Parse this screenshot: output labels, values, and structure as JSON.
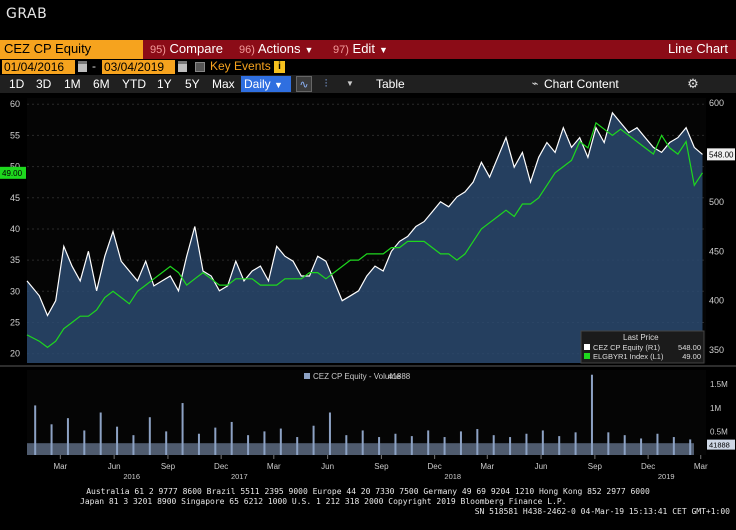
{
  "window": {
    "title": "GRAB"
  },
  "command_bar": {
    "ticker": "CEZ CP Equity",
    "menus": [
      {
        "num": "95)",
        "label": "Compare"
      },
      {
        "num": "96)",
        "label": "Actions"
      },
      {
        "num": "97)",
        "label": "Edit"
      }
    ],
    "view_label": "Line Chart"
  },
  "date_range": {
    "start": "01/04/2016",
    "end": "03/04/2019",
    "separator": "-",
    "key_events_label": "Key Events",
    "info_glyph": "i"
  },
  "toolbar": {
    "periods": [
      "1D",
      "3D",
      "1M",
      "6M",
      "YTD",
      "1Y",
      "5Y",
      "Max"
    ],
    "frequency": "Daily",
    "table_label": "Table",
    "chart_content_label": "Chart Content"
  },
  "colors": {
    "accent_orange": "#f6a31e",
    "command_red": "#8b0c17",
    "series_white": "#ffffff",
    "series_green": "#1ed81e",
    "volume_bar": "#8da2c4",
    "area_fill": "#2c4a70"
  },
  "chart_data": [
    {
      "type": "line",
      "legend": {
        "title": "Last Price",
        "placement": "bottom-right",
        "entries": [
          {
            "label": "CEZ CP Equity  (R1)",
            "value": "548.00",
            "color": "#ffffff"
          },
          {
            "label": "ELGBYR1 Index  (L1)",
            "value": "49.00",
            "color": "#1ed81e"
          }
        ]
      },
      "left_axis": {
        "ticks": [
          "20",
          "25",
          "30",
          "35",
          "40",
          "45",
          "50",
          "55",
          "60"
        ],
        "range": [
          18.5,
          61
        ],
        "last_label": "49.00"
      },
      "right_axis": {
        "ticks": [
          "350",
          "400",
          "450",
          "500",
          "550",
          "600"
        ],
        "range": [
          337,
          605
        ],
        "last_label": "548.00"
      },
      "series": [
        {
          "name": "CEZ CP Equity",
          "axis": "right",
          "dates": [
            "2016-01-04",
            "2016-01-25",
            "2016-02-08",
            "2016-02-22",
            "2016-03-07",
            "2016-03-21",
            "2016-04-04",
            "2016-04-18",
            "2016-05-02",
            "2016-05-16",
            "2016-05-30",
            "2016-06-13",
            "2016-06-27",
            "2016-07-11",
            "2016-07-25",
            "2016-08-08",
            "2016-08-22",
            "2016-09-05",
            "2016-09-19",
            "2016-10-03",
            "2016-10-17",
            "2016-10-31",
            "2016-11-14",
            "2016-11-28",
            "2016-12-12",
            "2016-12-26",
            "2017-01-09",
            "2017-01-23",
            "2017-02-06",
            "2017-02-20",
            "2017-03-06",
            "2017-03-20",
            "2017-04-03",
            "2017-04-17",
            "2017-05-01",
            "2017-05-15",
            "2017-05-29",
            "2017-06-12",
            "2017-06-26",
            "2017-07-10",
            "2017-07-24",
            "2017-08-07",
            "2017-08-21",
            "2017-09-04",
            "2017-09-18",
            "2017-10-02",
            "2017-10-16",
            "2017-10-30",
            "2017-11-13",
            "2017-11-27",
            "2017-12-11",
            "2017-12-25",
            "2018-01-08",
            "2018-01-22",
            "2018-02-05",
            "2018-02-19",
            "2018-03-05",
            "2018-03-19",
            "2018-04-02",
            "2018-04-16",
            "2018-04-30",
            "2018-05-14",
            "2018-05-28",
            "2018-06-11",
            "2018-06-25",
            "2018-07-09",
            "2018-07-23",
            "2018-08-06",
            "2018-08-20",
            "2018-09-03",
            "2018-09-17",
            "2018-10-01",
            "2018-10-15",
            "2018-10-29",
            "2018-11-12",
            "2018-11-26",
            "2018-12-10",
            "2018-12-24",
            "2019-01-07",
            "2019-01-21",
            "2019-02-04",
            "2019-02-18",
            "2019-03-04"
          ],
          "values": [
            420,
            405,
            385,
            400,
            455,
            435,
            420,
            450,
            410,
            445,
            470,
            440,
            430,
            420,
            440,
            415,
            420,
            425,
            410,
            445,
            475,
            430,
            425,
            410,
            415,
            440,
            420,
            430,
            435,
            420,
            455,
            445,
            440,
            425,
            425,
            445,
            440,
            420,
            400,
            405,
            410,
            425,
            435,
            430,
            450,
            460,
            465,
            475,
            480,
            490,
            500,
            495,
            505,
            510,
            520,
            540,
            525,
            545,
            565,
            535,
            550,
            520,
            545,
            560,
            550,
            575,
            555,
            565,
            545,
            575,
            560,
            590,
            580,
            570,
            575,
            565,
            555,
            550,
            560,
            565,
            575,
            555,
            548
          ]
        },
        {
          "name": "ELGBYR1 Index",
          "axis": "left",
          "dates": [
            "2016-01-04",
            "2016-01-25",
            "2016-02-08",
            "2016-02-22",
            "2016-03-07",
            "2016-03-21",
            "2016-04-04",
            "2016-04-18",
            "2016-05-02",
            "2016-05-16",
            "2016-05-30",
            "2016-06-13",
            "2016-06-27",
            "2016-07-11",
            "2016-07-25",
            "2016-08-08",
            "2016-08-22",
            "2016-09-05",
            "2016-09-19",
            "2016-10-03",
            "2016-10-17",
            "2016-10-31",
            "2016-11-14",
            "2016-11-28",
            "2016-12-12",
            "2016-12-26",
            "2017-01-09",
            "2017-01-23",
            "2017-02-06",
            "2017-02-20",
            "2017-03-06",
            "2017-03-20",
            "2017-04-03",
            "2017-04-17",
            "2017-05-01",
            "2017-05-15",
            "2017-05-29",
            "2017-06-12",
            "2017-06-26",
            "2017-07-10",
            "2017-07-24",
            "2017-08-07",
            "2017-08-21",
            "2017-09-04",
            "2017-09-18",
            "2017-10-02",
            "2017-10-16",
            "2017-10-30",
            "2017-11-13",
            "2017-11-27",
            "2017-12-11",
            "2017-12-25",
            "2018-01-08",
            "2018-01-22",
            "2018-02-05",
            "2018-02-19",
            "2018-03-05",
            "2018-03-19",
            "2018-04-02",
            "2018-04-16",
            "2018-04-30",
            "2018-05-14",
            "2018-05-28",
            "2018-06-11",
            "2018-06-25",
            "2018-07-09",
            "2018-07-23",
            "2018-08-06",
            "2018-08-20",
            "2018-09-03",
            "2018-09-17",
            "2018-10-01",
            "2018-10-15",
            "2018-10-29",
            "2018-11-12",
            "2018-11-26",
            "2018-12-10",
            "2018-12-24",
            "2019-01-07",
            "2019-01-21",
            "2019-02-04",
            "2019-02-18",
            "2019-03-04"
          ],
          "values": [
            23,
            22,
            21,
            22,
            24,
            25,
            26,
            26,
            27,
            29,
            30,
            29,
            28,
            30,
            31,
            32,
            33,
            34,
            33,
            31,
            32,
            33,
            32,
            31,
            31,
            32,
            32,
            32,
            31,
            31,
            31,
            32,
            32,
            32,
            33,
            33,
            32,
            33,
            34,
            35,
            35,
            36,
            36,
            36,
            37,
            37,
            38,
            38,
            38,
            37,
            36,
            36,
            35,
            36,
            38,
            40,
            41,
            42,
            43,
            42,
            44,
            44,
            45,
            47,
            49,
            50,
            51,
            54,
            53,
            57,
            56,
            55,
            56,
            55,
            54,
            53,
            52,
            55,
            53,
            52,
            54,
            47,
            49
          ]
        }
      ],
      "x_ticks": [
        {
          "label": "Mar",
          "date": "2016-03-01"
        },
        {
          "label": "Jun",
          "date": "2016-06-01"
        },
        {
          "label": "Sep",
          "date": "2016-09-01"
        },
        {
          "label": "Dec",
          "date": "2016-12-01"
        },
        {
          "label": "Mar",
          "date": "2017-03-01"
        },
        {
          "label": "Jun",
          "date": "2017-06-01"
        },
        {
          "label": "Sep",
          "date": "2017-09-01"
        },
        {
          "label": "Dec",
          "date": "2017-12-01"
        },
        {
          "label": "Mar",
          "date": "2018-03-01"
        },
        {
          "label": "Jun",
          "date": "2018-06-01"
        },
        {
          "label": "Sep",
          "date": "2018-09-01"
        },
        {
          "label": "Dec",
          "date": "2018-12-01"
        },
        {
          "label": "Mar",
          "date": "2019-03-01"
        }
      ],
      "year_labels": [
        {
          "label": "2016",
          "date": "2016-07-01"
        },
        {
          "label": "2017",
          "date": "2017-01-01"
        },
        {
          "label": "2018",
          "date": "2018-01-01"
        },
        {
          "label": "2019",
          "date": "2019-01-01"
        }
      ],
      "x_range": [
        "2016-01-04",
        "2019-03-10"
      ]
    },
    {
      "type": "bar",
      "legend": {
        "label": "CEZ CP Equity - Volume",
        "value": "41888"
      },
      "y_ticks": [
        "0.5M",
        "1M",
        "1.5M"
      ],
      "y_range": [
        0,
        1800000
      ],
      "last_label": "41888",
      "dates": [
        "2016-01-18",
        "2016-02-15",
        "2016-03-14",
        "2016-04-11",
        "2016-05-09",
        "2016-06-06",
        "2016-07-04",
        "2016-08-01",
        "2016-08-29",
        "2016-09-26",
        "2016-10-24",
        "2016-11-21",
        "2016-12-19",
        "2017-01-16",
        "2017-02-13",
        "2017-03-13",
        "2017-04-10",
        "2017-05-08",
        "2017-06-05",
        "2017-07-03",
        "2017-07-31",
        "2017-08-28",
        "2017-09-25",
        "2017-10-23",
        "2017-11-20",
        "2017-12-18",
        "2018-01-15",
        "2018-02-12",
        "2018-03-12",
        "2018-04-09",
        "2018-05-07",
        "2018-06-04",
        "2018-07-02",
        "2018-07-30",
        "2018-08-27",
        "2018-09-24",
        "2018-10-22",
        "2018-11-19",
        "2018-12-17",
        "2019-01-14",
        "2019-02-11"
      ],
      "values": [
        1050000,
        650000,
        780000,
        520000,
        900000,
        600000,
        420000,
        800000,
        500000,
        1100000,
        450000,
        580000,
        700000,
        420000,
        500000,
        560000,
        380000,
        620000,
        900000,
        420000,
        520000,
        380000,
        450000,
        400000,
        520000,
        380000,
        500000,
        550000,
        420000,
        380000,
        450000,
        520000,
        400000,
        480000,
        1700000,
        480000,
        420000,
        350000,
        450000,
        380000,
        330000
      ]
    }
  ],
  "footer": {
    "line1": "Australia 61 2 9777 8600 Brazil 5511 2395 9000 Europe 44 20 7330 7500 Germany 49 69 9204 1210 Hong Kong 852 2977 6000",
    "line2": "Japan 81 3 3201 8900       Singapore 65 6212 1000       U.S. 1 212 318 2000            Copyright 2019 Bloomberg Finance L.P.",
    "line3": "SN 518581 H438-2462-0 04-Mar-19 15:13:41 CET  GMT+1:00"
  }
}
